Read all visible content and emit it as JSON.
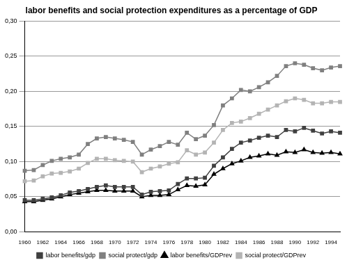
{
  "chart_data": {
    "type": "line",
    "title": "labor benefits and social protection expenditures as a percentage of GDP",
    "categories": [
      "1960",
      null,
      "1962",
      null,
      "1964",
      null,
      "1966",
      null,
      "1968",
      null,
      "1970",
      null,
      "1972",
      null,
      "1974",
      null,
      "1976",
      null,
      "1978",
      null,
      "1980",
      null,
      "1982",
      null,
      "1984",
      null,
      "1986",
      null,
      "1988",
      null,
      "1990",
      null,
      "1992",
      null,
      "1994",
      null
    ],
    "ylim": [
      0,
      0.3
    ],
    "yticks": [
      {
        "value": 0,
        "label": "0,00"
      },
      {
        "value": 0.05,
        "label": "0,05"
      },
      {
        "value": 0.1,
        "label": "0,10"
      },
      {
        "value": 0.15,
        "label": "0,15"
      },
      {
        "value": 0.2,
        "label": "0,20"
      },
      {
        "value": 0.25,
        "label": "0,25"
      },
      {
        "value": 0.3,
        "label": "0,30"
      }
    ],
    "grid": true,
    "legend": "bottom",
    "series": [
      {
        "name": "labor benefits/gdp",
        "color": "#404040",
        "marker": "square",
        "values": [
          0.045,
          0.045,
          0.047,
          0.049,
          0.052,
          0.056,
          0.058,
          0.061,
          0.064,
          0.066,
          0.064,
          0.064,
          0.064,
          0.053,
          0.057,
          0.058,
          0.059,
          0.068,
          0.076,
          0.076,
          0.077,
          0.094,
          0.106,
          0.118,
          0.127,
          0.13,
          0.134,
          0.137,
          0.135,
          0.145,
          0.143,
          0.148,
          0.144,
          0.14,
          0.143,
          0.141
        ]
      },
      {
        "name": "social protect/gdp",
        "color": "#808080",
        "marker": "square",
        "values": [
          0.087,
          0.088,
          0.095,
          0.101,
          0.104,
          0.106,
          0.11,
          0.125,
          0.133,
          0.135,
          0.133,
          0.131,
          0.128,
          0.11,
          0.117,
          0.122,
          0.128,
          0.124,
          0.141,
          0.132,
          0.137,
          0.152,
          0.18,
          0.19,
          0.202,
          0.2,
          0.206,
          0.213,
          0.222,
          0.236,
          0.24,
          0.238,
          0.233,
          0.23,
          0.234,
          0.236
        ]
      },
      {
        "name": "labor benefits/GDPrev",
        "color": "#000000",
        "marker": "triangle",
        "values": [
          0.043,
          0.043,
          0.045,
          0.047,
          0.05,
          0.053,
          0.055,
          0.057,
          0.059,
          0.059,
          0.058,
          0.058,
          0.058,
          0.05,
          0.052,
          0.052,
          0.053,
          0.06,
          0.066,
          0.065,
          0.067,
          0.082,
          0.09,
          0.097,
          0.101,
          0.106,
          0.108,
          0.111,
          0.109,
          0.114,
          0.113,
          0.117,
          0.113,
          0.112,
          0.113,
          0.111
        ]
      },
      {
        "name": "social protect/GDPrev",
        "color": "#b4b4b4",
        "marker": "square",
        "values": [
          0.072,
          0.073,
          0.079,
          0.083,
          0.084,
          0.086,
          0.09,
          0.098,
          0.104,
          0.104,
          0.102,
          0.101,
          0.1,
          0.085,
          0.09,
          0.093,
          0.097,
          0.099,
          0.116,
          0.11,
          0.113,
          0.127,
          0.145,
          0.155,
          0.157,
          0.162,
          0.168,
          0.174,
          0.18,
          0.186,
          0.19,
          0.188,
          0.183,
          0.183,
          0.185,
          0.185
        ]
      }
    ]
  }
}
